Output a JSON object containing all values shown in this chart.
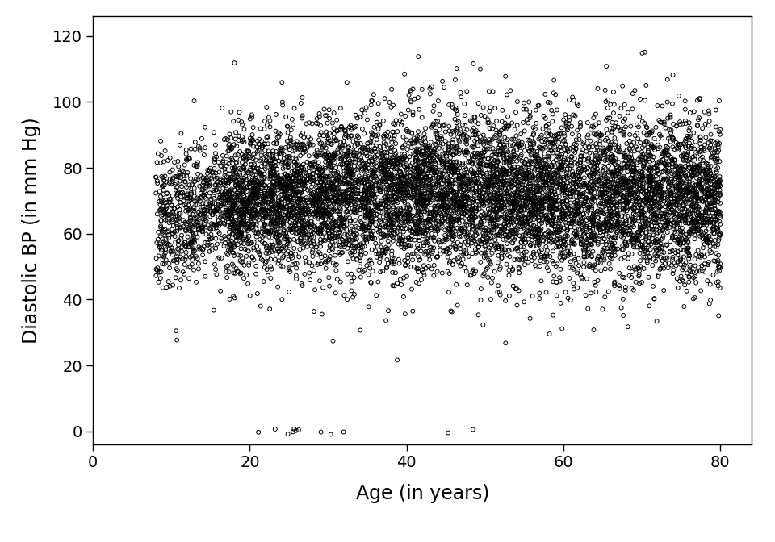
{
  "title": "",
  "xlabel": "Age (in years)",
  "ylabel": "Diastolic BP (in mm Hg)",
  "xlim": [
    0,
    84
  ],
  "ylim": [
    -4,
    126
  ],
  "xticks": [
    0,
    20,
    40,
    60,
    80
  ],
  "yticks": [
    0,
    20,
    40,
    60,
    80,
    100,
    120
  ],
  "marker": "o",
  "marker_size": 3.5,
  "marker_facecolor": "none",
  "marker_edgecolor": "#000000",
  "marker_linewidth": 0.7,
  "alpha": 1.0,
  "background_color": "#ffffff",
  "xlabel_fontsize": 17,
  "ylabel_fontsize": 17,
  "tick_fontsize": 14,
  "n_points": 9000,
  "seed": 137
}
